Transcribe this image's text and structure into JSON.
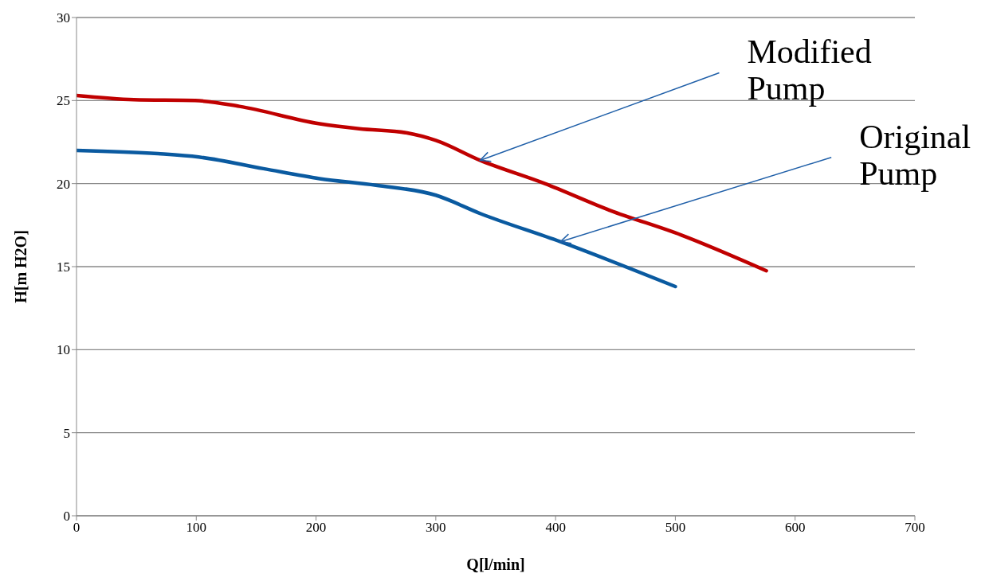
{
  "chart_data": {
    "type": "line",
    "xlabel": "Q[l/min]",
    "ylabel": "H[m H2O]",
    "xlim": [
      0,
      700
    ],
    "xticks": [
      0,
      100,
      200,
      300,
      400,
      500,
      600,
      700
    ],
    "ylim": [
      0,
      30
    ],
    "yticks": [
      0,
      5,
      10,
      15,
      20,
      25,
      30
    ],
    "grid": "y",
    "legend": false,
    "marker": "none",
    "line_style": "solid",
    "series": [
      {
        "color": "#c00000",
        "x": [
          0,
          48,
          99,
          136,
          203,
          236,
          276,
          300,
          337,
          391,
          445,
          505,
          576
        ],
        "values": [
          25.3,
          25.05,
          25.0,
          24.65,
          23.6,
          23.3,
          23.05,
          22.6,
          21.4,
          20.0,
          18.4,
          16.9,
          14.75
        ]
      },
      {
        "color": "#0a5aa0",
        "x": [
          0,
          68,
          102,
          156,
          203,
          250,
          300,
          337,
          404,
          500
        ],
        "values": [
          22.0,
          21.8,
          21.6,
          20.9,
          20.3,
          19.9,
          19.3,
          18.2,
          16.5,
          13.8
        ]
      }
    ],
    "annotations": [
      {
        "text": "Modified\nPump",
        "x": 337,
        "y": 21.4
      },
      {
        "text": "Original\nPump",
        "x": 404,
        "y": 16.5
      }
    ]
  }
}
